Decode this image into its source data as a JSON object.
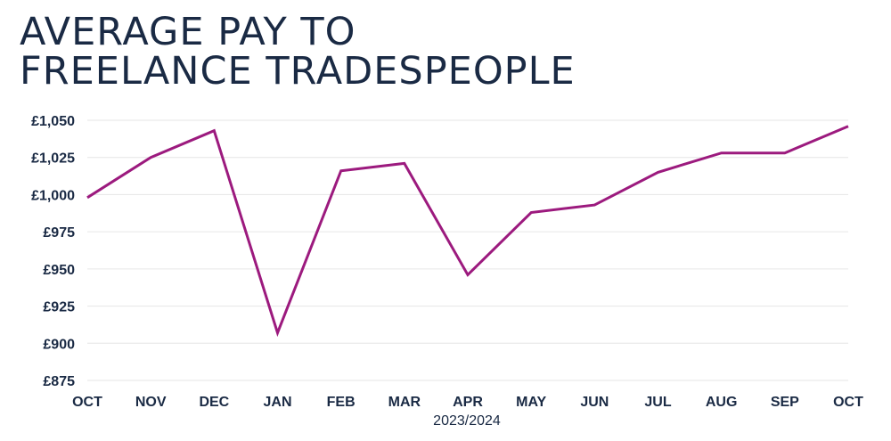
{
  "chart_data": {
    "type": "line",
    "title_lines": [
      "AVERAGE PAY TO",
      "FREELANCE TRADESPEOPLE"
    ],
    "categories": [
      "OCT",
      "NOV",
      "DEC",
      "JAN",
      "FEB",
      "MAR",
      "APR",
      "MAY",
      "JUN",
      "JUL",
      "AUG",
      "SEP",
      "OCT"
    ],
    "series": [
      {
        "values": [
          998,
          1025,
          1043,
          907,
          1016,
          1021,
          946,
          988,
          993,
          1015,
          1028,
          1028,
          1046
        ]
      }
    ],
    "xlabel": "2023/2024",
    "ylabel": "",
    "ylim": [
      875,
      1050
    ],
    "yticks": [
      875,
      900,
      925,
      950,
      975,
      1000,
      1025,
      1050
    ],
    "ytick_labels": [
      "£875",
      "£900",
      "£925",
      "£950",
      "£975",
      "£1,000",
      "£1,025",
      "£1,050"
    ],
    "grid": true,
    "legend": "none",
    "line_color": "#9c1a7e",
    "text_color": "#1a2a44",
    "grid_color": "#e6e6e6"
  }
}
